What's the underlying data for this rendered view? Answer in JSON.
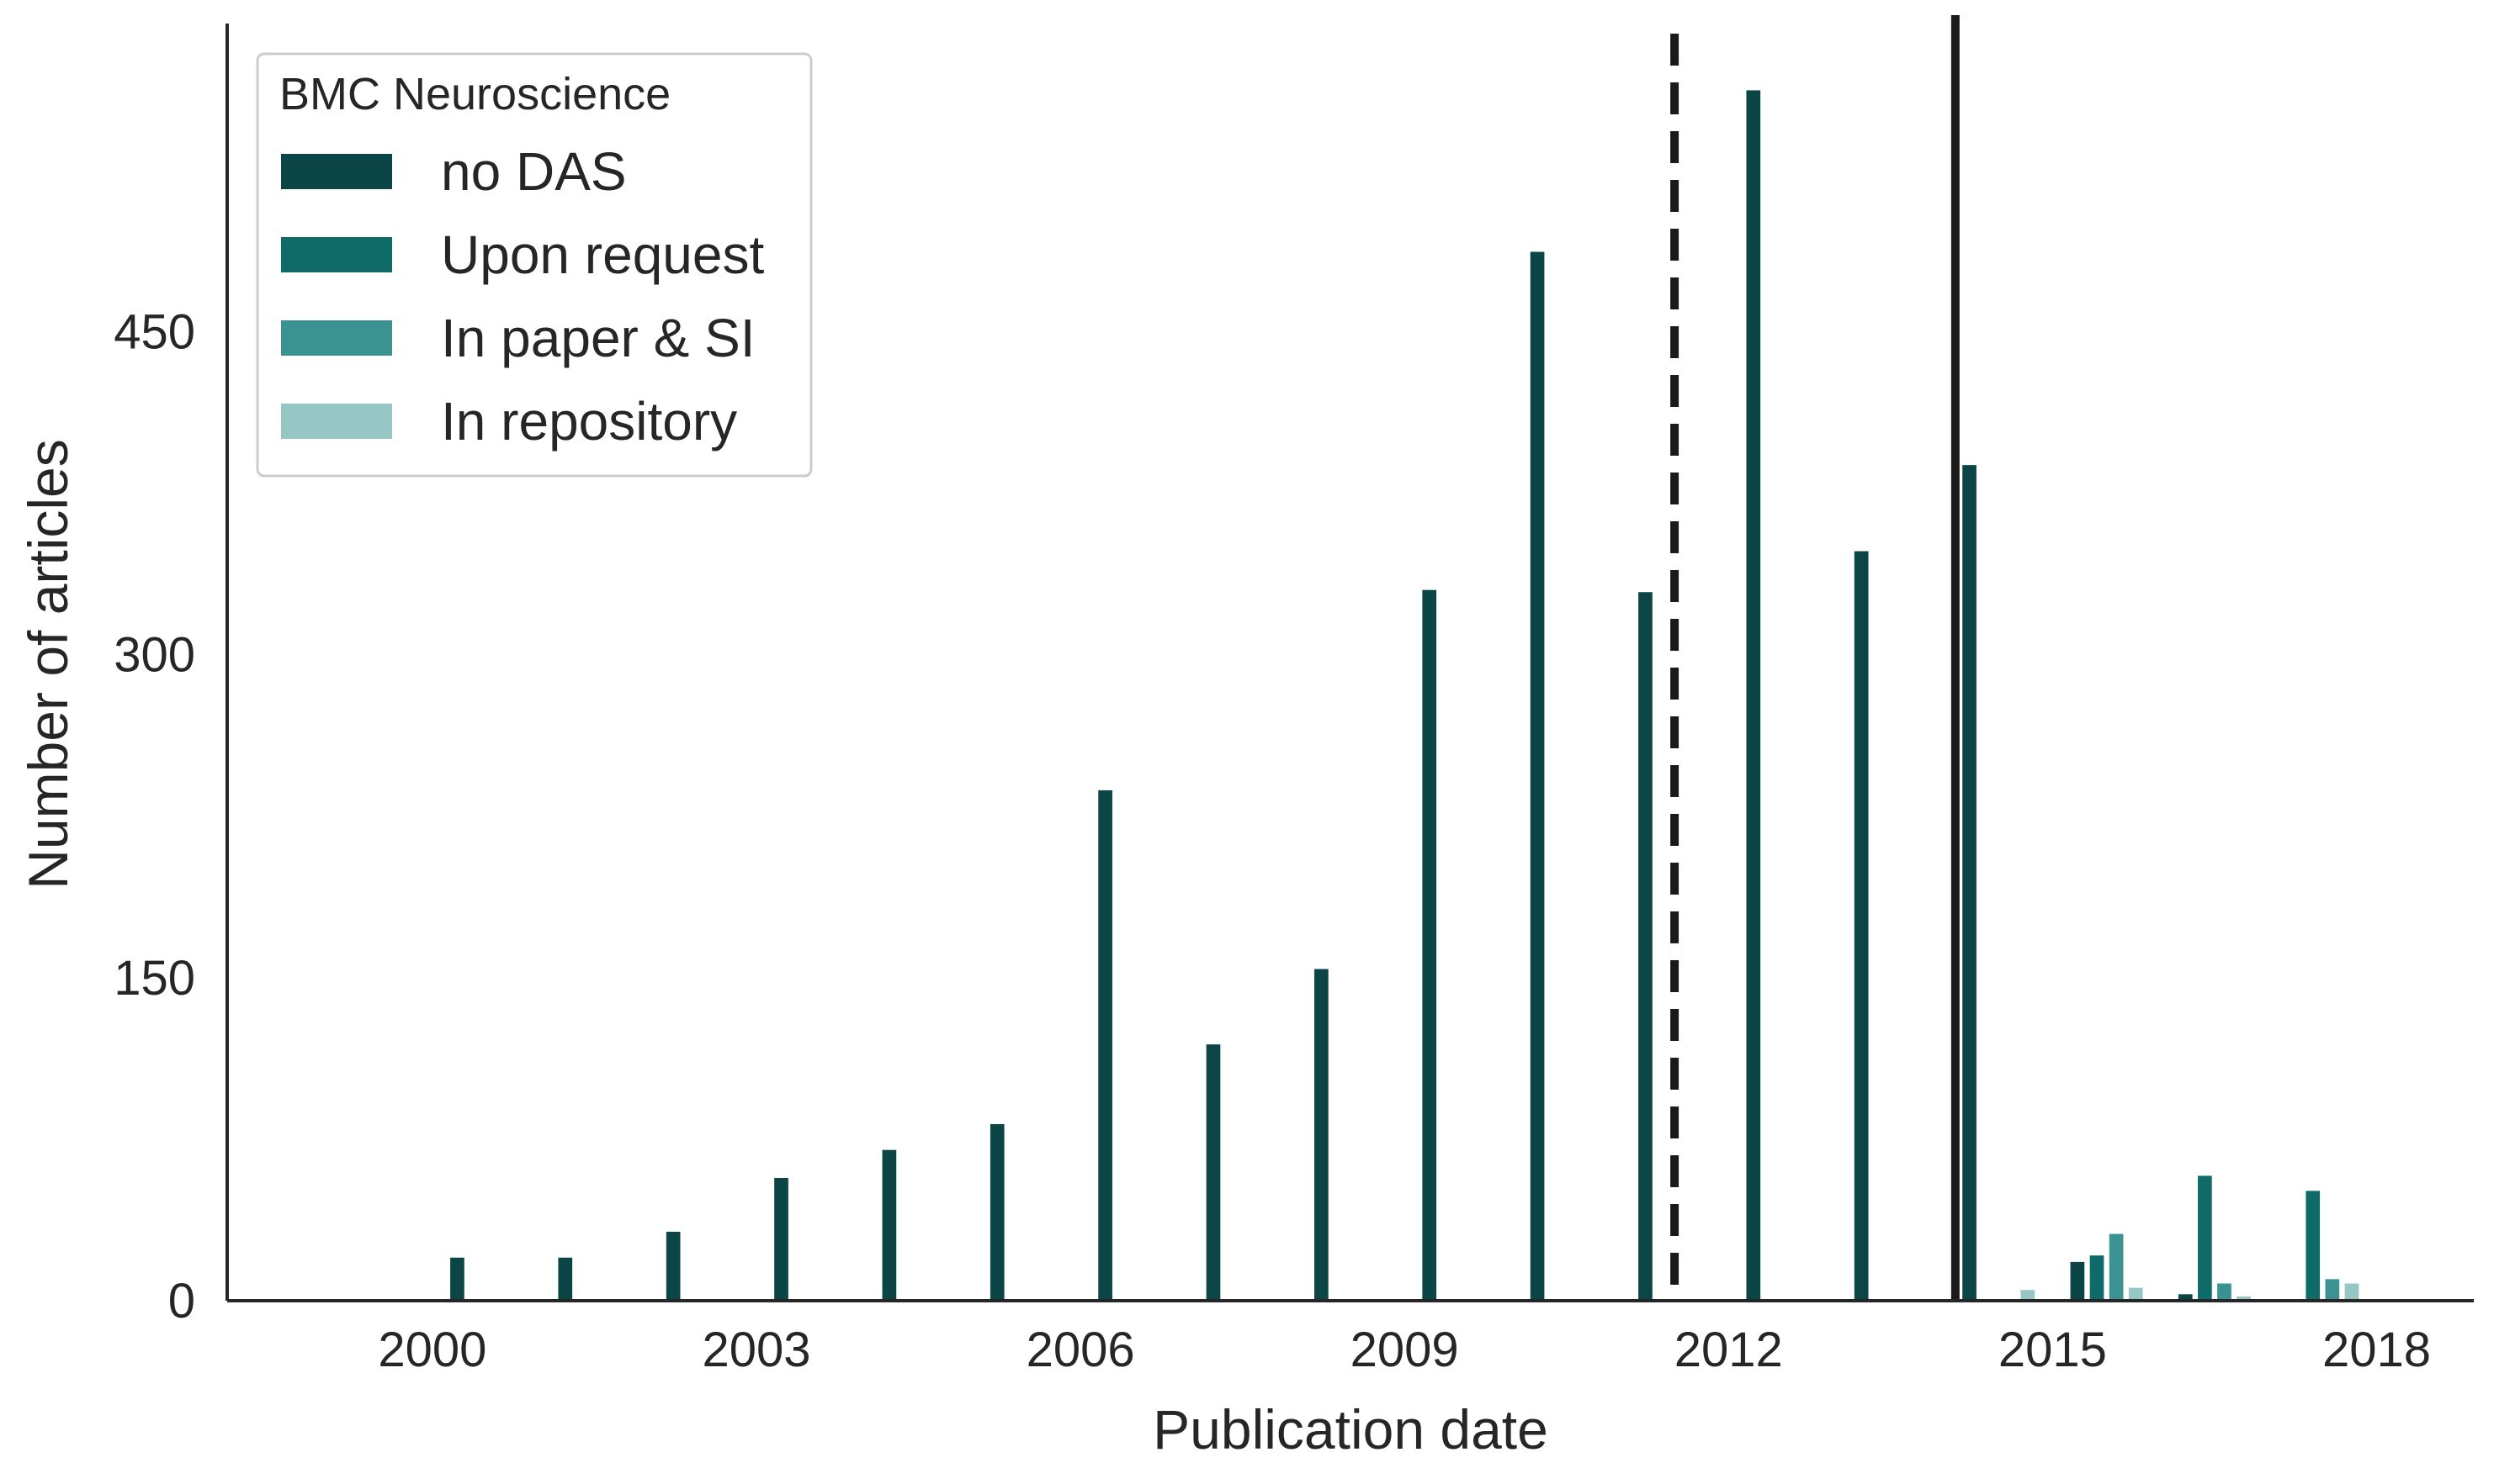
{
  "chart_data": {
    "type": "bar",
    "xlabel": "Publication date",
    "ylabel": "Number of articles",
    "x_ticks": [
      2000,
      2003,
      2006,
      2009,
      2012,
      2015,
      2018
    ],
    "y_ticks": [
      0,
      150,
      300,
      450
    ],
    "xlim": [
      1998.1,
      2018.9
    ],
    "ylim": [
      0,
      593
    ],
    "grid": false,
    "legend": {
      "title": "BMC Neuroscience",
      "placement": "top-left"
    },
    "series": [
      {
        "name": "no DAS",
        "color": "#0b4545",
        "points": [
          {
            "x": 2000,
            "y": 20
          },
          {
            "x": 2001,
            "y": 20
          },
          {
            "x": 2002,
            "y": 32
          },
          {
            "x": 2003,
            "y": 57
          },
          {
            "x": 2004,
            "y": 70
          },
          {
            "x": 2005,
            "y": 82
          },
          {
            "x": 2006,
            "y": 237
          },
          {
            "x": 2007,
            "y": 119
          },
          {
            "x": 2008,
            "y": 154
          },
          {
            "x": 2009,
            "y": 330
          },
          {
            "x": 2010,
            "y": 487
          },
          {
            "x": 2011,
            "y": 329
          },
          {
            "x": 2012,
            "y": 562
          },
          {
            "x": 2013,
            "y": 348
          },
          {
            "x": 2014,
            "y": 388
          },
          {
            "x": 2015,
            "y": 18
          },
          {
            "x": 2016,
            "y": 3
          }
        ]
      },
      {
        "name": "Upon request",
        "color": "#0f6b68",
        "points": [
          {
            "x": 2015,
            "y": 21
          },
          {
            "x": 2016,
            "y": 58
          },
          {
            "x": 2017,
            "y": 51
          }
        ]
      },
      {
        "name": "In paper & SI",
        "color": "#3a9390",
        "points": [
          {
            "x": 2015,
            "y": 31
          },
          {
            "x": 2016,
            "y": 8
          },
          {
            "x": 2017,
            "y": 10
          }
        ]
      },
      {
        "name": "In repository",
        "color": "#96c7c4",
        "points": [
          {
            "x": 2014,
            "y": 5
          },
          {
            "x": 2015,
            "y": 6
          },
          {
            "x": 2016,
            "y": 2
          },
          {
            "x": 2017,
            "y": 8
          }
        ]
      }
    ],
    "reference_lines": [
      {
        "x": 2011.5,
        "style": "dashed",
        "color": "#1a1a1a"
      },
      {
        "x": 2014.1,
        "style": "solid",
        "color": "#1a1a1a"
      }
    ]
  }
}
